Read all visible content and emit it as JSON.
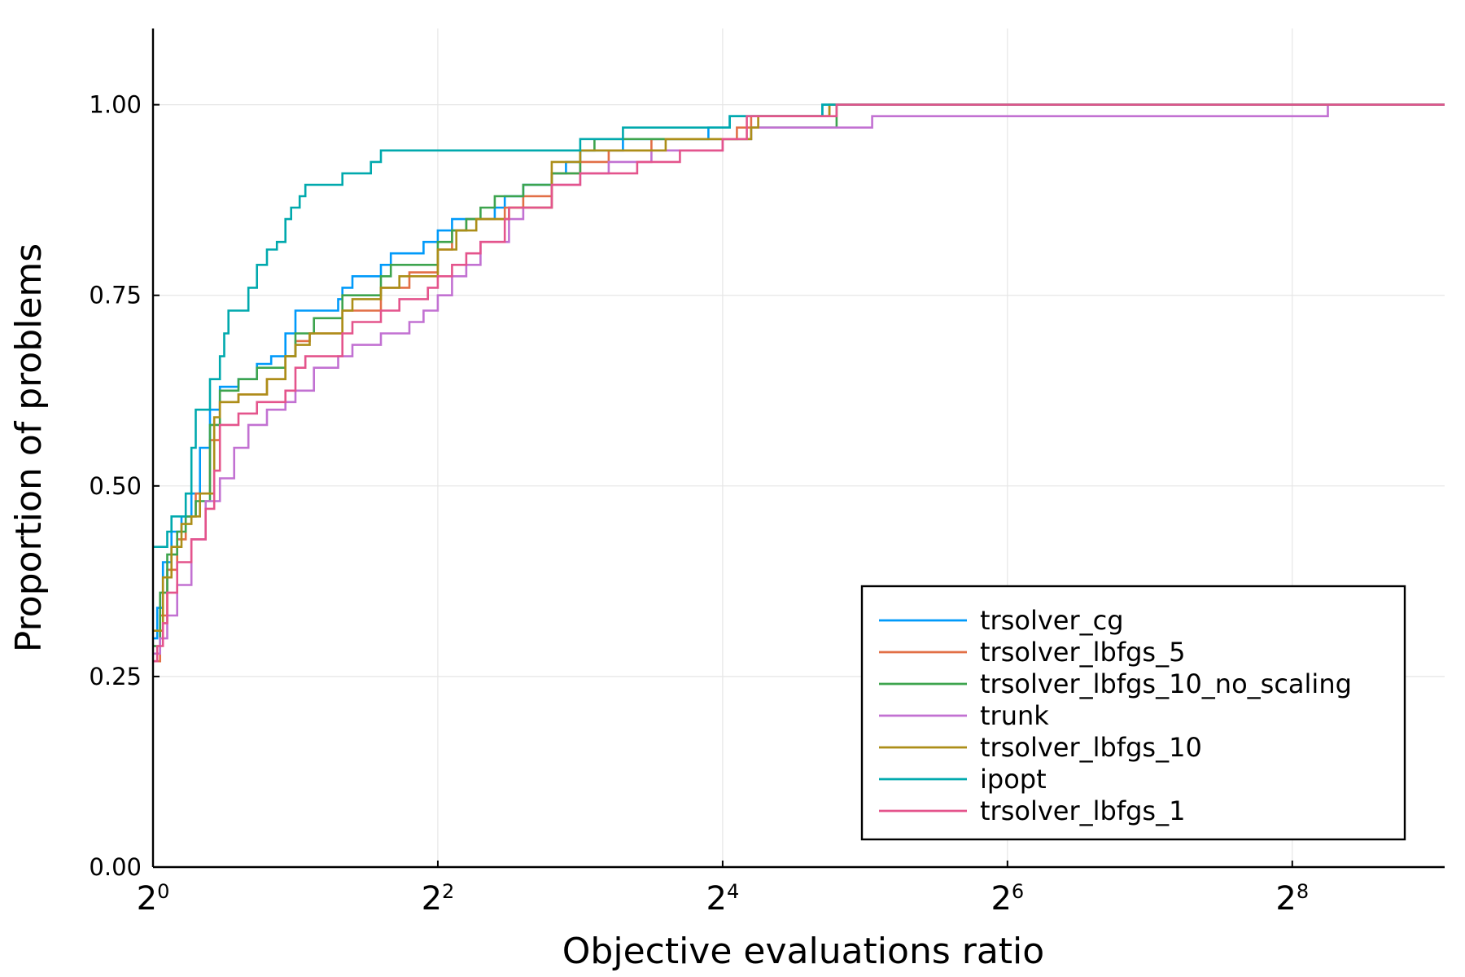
{
  "chart_data": {
    "type": "line",
    "step": true,
    "xlabel": "Objective evaluations ratio",
    "ylabel": "Proportion of problems",
    "x_scale": "log2",
    "xlim_log2": [
      0,
      9.07
    ],
    "ylim": [
      0,
      1.1
    ],
    "x_ticks": [
      {
        "base": "2",
        "exp": "0"
      },
      {
        "base": "2",
        "exp": "2"
      },
      {
        "base": "2",
        "exp": "4"
      },
      {
        "base": "2",
        "exp": "6"
      },
      {
        "base": "2",
        "exp": "8"
      }
    ],
    "x_tick_values_log2": [
      0,
      2,
      4,
      6,
      8
    ],
    "y_ticks": [
      "0.00",
      "0.25",
      "0.50",
      "0.75",
      "1.00"
    ],
    "y_tick_values": [
      0,
      0.25,
      0.5,
      0.75,
      1.0
    ],
    "grid": true,
    "legend_position": "bottom-right",
    "series": [
      {
        "name": "trsolver_cg",
        "color": "#009AFA",
        "points": [
          [
            0,
            0.3
          ],
          [
            0.03,
            0.34
          ],
          [
            0.07,
            0.4
          ],
          [
            0.13,
            0.44
          ],
          [
            0.2,
            0.46
          ],
          [
            0.27,
            0.49
          ],
          [
            0.33,
            0.55
          ],
          [
            0.4,
            0.6
          ],
          [
            0.47,
            0.63
          ],
          [
            0.6,
            0.64
          ],
          [
            0.73,
            0.66
          ],
          [
            0.83,
            0.67
          ],
          [
            0.93,
            0.7
          ],
          [
            1.0,
            0.73
          ],
          [
            1.13,
            0.73
          ],
          [
            1.3,
            0.745
          ],
          [
            1.33,
            0.76
          ],
          [
            1.4,
            0.775
          ],
          [
            1.6,
            0.79
          ],
          [
            1.67,
            0.805
          ],
          [
            1.9,
            0.82
          ],
          [
            2.0,
            0.835
          ],
          [
            2.1,
            0.85
          ],
          [
            2.2,
            0.85
          ],
          [
            2.4,
            0.865
          ],
          [
            2.47,
            0.88
          ],
          [
            2.6,
            0.895
          ],
          [
            2.8,
            0.91
          ],
          [
            2.9,
            0.925
          ],
          [
            3.0,
            0.94
          ],
          [
            3.3,
            0.955
          ],
          [
            3.6,
            0.955
          ],
          [
            3.9,
            0.97
          ],
          [
            4.05,
            0.985
          ],
          [
            4.7,
            1.0
          ],
          [
            9.07,
            1.0
          ]
        ]
      },
      {
        "name": "trsolver_lbfgs_5",
        "color": "#E26F46",
        "points": [
          [
            0,
            0.27
          ],
          [
            0.05,
            0.33
          ],
          [
            0.1,
            0.39
          ],
          [
            0.17,
            0.43
          ],
          [
            0.23,
            0.46
          ],
          [
            0.3,
            0.49
          ],
          [
            0.4,
            0.56
          ],
          [
            0.47,
            0.61
          ],
          [
            0.6,
            0.62
          ],
          [
            0.8,
            0.64
          ],
          [
            0.93,
            0.67
          ],
          [
            1.0,
            0.69
          ],
          [
            1.1,
            0.7
          ],
          [
            1.33,
            0.73
          ],
          [
            1.6,
            0.76
          ],
          [
            1.8,
            0.78
          ],
          [
            2.0,
            0.81
          ],
          [
            2.1,
            0.835
          ],
          [
            2.2,
            0.85
          ],
          [
            2.47,
            0.865
          ],
          [
            2.6,
            0.88
          ],
          [
            2.8,
            0.91
          ],
          [
            3.0,
            0.925
          ],
          [
            3.2,
            0.94
          ],
          [
            3.5,
            0.955
          ],
          [
            4.1,
            0.97
          ],
          [
            4.2,
            0.985
          ],
          [
            4.75,
            1.0
          ],
          [
            9.07,
            1.0
          ]
        ]
      },
      {
        "name": "trsolver_lbfgs_10_no_scaling",
        "color": "#3DA44E",
        "points": [
          [
            0,
            0.29
          ],
          [
            0.05,
            0.36
          ],
          [
            0.1,
            0.41
          ],
          [
            0.17,
            0.44
          ],
          [
            0.23,
            0.46
          ],
          [
            0.3,
            0.48
          ],
          [
            0.4,
            0.58
          ],
          [
            0.47,
            0.625
          ],
          [
            0.6,
            0.64
          ],
          [
            0.73,
            0.655
          ],
          [
            0.93,
            0.67
          ],
          [
            1.0,
            0.7
          ],
          [
            1.13,
            0.72
          ],
          [
            1.33,
            0.75
          ],
          [
            1.6,
            0.775
          ],
          [
            1.67,
            0.79
          ],
          [
            2.0,
            0.82
          ],
          [
            2.1,
            0.835
          ],
          [
            2.2,
            0.85
          ],
          [
            2.3,
            0.865
          ],
          [
            2.4,
            0.88
          ],
          [
            2.6,
            0.895
          ],
          [
            2.8,
            0.91
          ],
          [
            3.0,
            0.94
          ],
          [
            3.1,
            0.955
          ],
          [
            3.6,
            0.955
          ],
          [
            4.2,
            0.97
          ],
          [
            4.8,
            1.0
          ],
          [
            9.07,
            1.0
          ]
        ]
      },
      {
        "name": "trunk",
        "color": "#C271D2",
        "points": [
          [
            0,
            0.28
          ],
          [
            0.05,
            0.3
          ],
          [
            0.1,
            0.33
          ],
          [
            0.17,
            0.37
          ],
          [
            0.27,
            0.43
          ],
          [
            0.37,
            0.48
          ],
          [
            0.47,
            0.51
          ],
          [
            0.57,
            0.55
          ],
          [
            0.67,
            0.58
          ],
          [
            0.8,
            0.6
          ],
          [
            0.93,
            0.61
          ],
          [
            1.0,
            0.625
          ],
          [
            1.13,
            0.655
          ],
          [
            1.3,
            0.67
          ],
          [
            1.4,
            0.685
          ],
          [
            1.6,
            0.7
          ],
          [
            1.8,
            0.715
          ],
          [
            1.9,
            0.73
          ],
          [
            2.0,
            0.75
          ],
          [
            2.1,
            0.775
          ],
          [
            2.2,
            0.79
          ],
          [
            2.3,
            0.82
          ],
          [
            2.5,
            0.85
          ],
          [
            2.6,
            0.865
          ],
          [
            2.8,
            0.895
          ],
          [
            3.0,
            0.91
          ],
          [
            3.2,
            0.925
          ],
          [
            3.5,
            0.94
          ],
          [
            4.0,
            0.955
          ],
          [
            4.2,
            0.97
          ],
          [
            5.05,
            0.985
          ],
          [
            8.25,
            1.0
          ],
          [
            9.07,
            1.0
          ]
        ]
      },
      {
        "name": "trsolver_lbfgs_10",
        "color": "#AC8E18",
        "points": [
          [
            0,
            0.31
          ],
          [
            0.07,
            0.38
          ],
          [
            0.13,
            0.42
          ],
          [
            0.2,
            0.45
          ],
          [
            0.27,
            0.46
          ],
          [
            0.33,
            0.49
          ],
          [
            0.43,
            0.59
          ],
          [
            0.47,
            0.61
          ],
          [
            0.6,
            0.62
          ],
          [
            0.8,
            0.64
          ],
          [
            0.93,
            0.67
          ],
          [
            1.0,
            0.685
          ],
          [
            1.1,
            0.7
          ],
          [
            1.33,
            0.73
          ],
          [
            1.4,
            0.745
          ],
          [
            1.6,
            0.76
          ],
          [
            1.73,
            0.775
          ],
          [
            2.0,
            0.81
          ],
          [
            2.13,
            0.835
          ],
          [
            2.27,
            0.85
          ],
          [
            2.5,
            0.865
          ],
          [
            2.8,
            0.88
          ],
          [
            2.8,
            0.925
          ],
          [
            3.0,
            0.94
          ],
          [
            3.6,
            0.955
          ],
          [
            4.2,
            0.97
          ],
          [
            4.25,
            0.985
          ],
          [
            4.75,
            1.0
          ],
          [
            9.07,
            1.0
          ]
        ]
      },
      {
        "name": "ipopt",
        "color": "#00A9AD",
        "points": [
          [
            0,
            0.42
          ],
          [
            0.1,
            0.44
          ],
          [
            0.13,
            0.46
          ],
          [
            0.2,
            0.46
          ],
          [
            0.23,
            0.49
          ],
          [
            0.27,
            0.55
          ],
          [
            0.3,
            0.6
          ],
          [
            0.33,
            0.6
          ],
          [
            0.4,
            0.64
          ],
          [
            0.47,
            0.67
          ],
          [
            0.5,
            0.7
          ],
          [
            0.53,
            0.73
          ],
          [
            0.67,
            0.76
          ],
          [
            0.73,
            0.79
          ],
          [
            0.8,
            0.81
          ],
          [
            0.87,
            0.82
          ],
          [
            0.93,
            0.85
          ],
          [
            0.97,
            0.865
          ],
          [
            1.03,
            0.88
          ],
          [
            1.07,
            0.895
          ],
          [
            1.33,
            0.91
          ],
          [
            1.53,
            0.925
          ],
          [
            1.6,
            0.94
          ],
          [
            2.8,
            0.94
          ],
          [
            3.0,
            0.955
          ],
          [
            3.3,
            0.97
          ],
          [
            4.05,
            0.985
          ],
          [
            4.7,
            1.0
          ],
          [
            9.07,
            1.0
          ]
        ]
      },
      {
        "name": "trsolver_lbfgs_1",
        "color": "#E4548C",
        "points": [
          [
            0,
            0.27
          ],
          [
            0.03,
            0.29
          ],
          [
            0.07,
            0.32
          ],
          [
            0.1,
            0.36
          ],
          [
            0.17,
            0.4
          ],
          [
            0.27,
            0.43
          ],
          [
            0.37,
            0.47
          ],
          [
            0.43,
            0.52
          ],
          [
            0.47,
            0.58
          ],
          [
            0.6,
            0.595
          ],
          [
            0.73,
            0.61
          ],
          [
            0.93,
            0.625
          ],
          [
            1.0,
            0.655
          ],
          [
            1.07,
            0.67
          ],
          [
            1.33,
            0.7
          ],
          [
            1.4,
            0.715
          ],
          [
            1.6,
            0.73
          ],
          [
            1.73,
            0.745
          ],
          [
            1.93,
            0.76
          ],
          [
            2.0,
            0.775
          ],
          [
            2.1,
            0.79
          ],
          [
            2.2,
            0.805
          ],
          [
            2.3,
            0.82
          ],
          [
            2.47,
            0.85
          ],
          [
            2.5,
            0.865
          ],
          [
            2.8,
            0.895
          ],
          [
            3.0,
            0.91
          ],
          [
            3.4,
            0.91
          ],
          [
            3.4,
            0.925
          ],
          [
            3.7,
            0.94
          ],
          [
            4.0,
            0.955
          ],
          [
            4.17,
            0.985
          ],
          [
            4.8,
            1.0
          ],
          [
            9.07,
            1.0
          ]
        ]
      }
    ]
  }
}
